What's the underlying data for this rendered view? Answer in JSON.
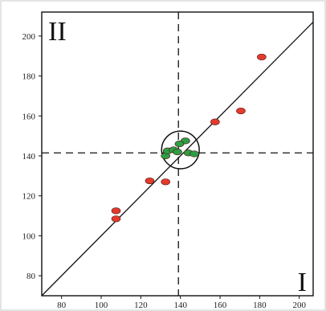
{
  "chart_data": {
    "type": "scatter",
    "title": "",
    "xlabel": "",
    "ylabel": "",
    "xlim": [
      70,
      207
    ],
    "ylim": [
      70,
      212
    ],
    "x_ticks": [
      80,
      100,
      120,
      140,
      160,
      180,
      200
    ],
    "y_ticks": [
      80,
      100,
      120,
      140,
      160,
      180,
      200
    ],
    "grid": false,
    "reference_lines": {
      "diagonal": "y = x",
      "vertical_dashed_x": 139,
      "horizontal_dashed_y": 141.5
    },
    "highlight_circle": {
      "cx": 140,
      "cy": 143,
      "r": 9.5
    },
    "quadrant_labels": [
      {
        "text": "II",
        "position": "top-left"
      },
      {
        "text": "I",
        "position": "bottom-right"
      }
    ],
    "series": [
      {
        "color": "#e53a2e",
        "points": [
          {
            "x": 181,
            "y": 189.5
          },
          {
            "x": 170.5,
            "y": 162.5
          },
          {
            "x": 157.5,
            "y": 157
          },
          {
            "x": 124.5,
            "y": 127.5
          },
          {
            "x": 132.5,
            "y": 127
          },
          {
            "x": 107.5,
            "y": 112.5
          },
          {
            "x": 107.5,
            "y": 108.5
          }
        ]
      },
      {
        "color": "#2e9e44",
        "points": [
          {
            "x": 132.5,
            "y": 140
          },
          {
            "x": 133.5,
            "y": 142.5
          },
          {
            "x": 136.5,
            "y": 143
          },
          {
            "x": 138.5,
            "y": 142
          },
          {
            "x": 142.5,
            "y": 147.5
          },
          {
            "x": 144,
            "y": 141.5
          },
          {
            "x": 147,
            "y": 141
          },
          {
            "x": 139.5,
            "y": 146
          }
        ]
      }
    ]
  }
}
